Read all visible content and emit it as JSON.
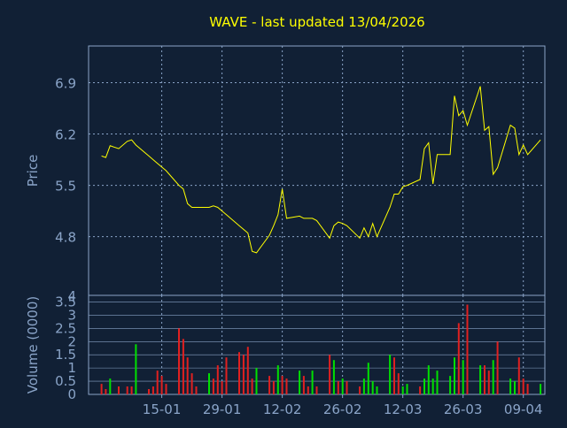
{
  "title": "WAVE - last updated 13/04/2026",
  "colors": {
    "background": "#112035",
    "axis": "#8aa4c8",
    "grid": "#8aa4c8",
    "label": "#8aa4c8",
    "title": "#ffff00",
    "price_line": "#ffff00",
    "volume_up": "#00e000",
    "volume_down": "#e02020"
  },
  "chart_data": [
    {
      "type": "line",
      "name": "price",
      "ylabel": "Price",
      "ylim": [
        4,
        7.4
      ],
      "yticks": [
        4.8,
        5.5,
        6.2,
        6.9
      ],
      "ytick_labels": [
        "4.8",
        "5.5",
        "6.2",
        "6.9"
      ],
      "bottom_label": "4",
      "grid": true,
      "x_dates": [
        "2026-01-01",
        "2026-01-02",
        "2026-01-03",
        "2026-01-05",
        "2026-01-07",
        "2026-01-08",
        "2026-01-09",
        "2026-01-12",
        "2026-01-13",
        "2026-01-14",
        "2026-01-15",
        "2026-01-16",
        "2026-01-19",
        "2026-01-20",
        "2026-01-21",
        "2026-01-22",
        "2026-01-23",
        "2026-01-26",
        "2026-01-27",
        "2026-01-28",
        "2026-01-29",
        "2026-01-30",
        "2026-02-02",
        "2026-02-03",
        "2026-02-04",
        "2026-02-05",
        "2026-02-06",
        "2026-02-09",
        "2026-02-10",
        "2026-02-11",
        "2026-02-12",
        "2026-02-13",
        "2026-02-16",
        "2026-02-17",
        "2026-02-18",
        "2026-02-19",
        "2026-02-20",
        "2026-02-23",
        "2026-02-24",
        "2026-02-25",
        "2026-02-26",
        "2026-02-27",
        "2026-03-02",
        "2026-03-03",
        "2026-03-04",
        "2026-03-05",
        "2026-03-06",
        "2026-03-09",
        "2026-03-10",
        "2026-03-11",
        "2026-03-12",
        "2026-03-13",
        "2026-03-16",
        "2026-03-17",
        "2026-03-18",
        "2026-03-19",
        "2026-03-20",
        "2026-03-23",
        "2026-03-24",
        "2026-03-25",
        "2026-03-26",
        "2026-03-27",
        "2026-03-30",
        "2026-03-31",
        "2026-04-01",
        "2026-04-02",
        "2026-04-03",
        "2026-04-06",
        "2026-04-07",
        "2026-04-08",
        "2026-04-09",
        "2026-04-10",
        "2026-04-13"
      ],
      "values": [
        5.9,
        5.88,
        6.04,
        6.0,
        6.1,
        6.12,
        6.05,
        5.9,
        5.85,
        5.8,
        5.75,
        5.7,
        5.5,
        5.45,
        5.25,
        5.2,
        5.2,
        5.2,
        5.22,
        5.2,
        5.15,
        5.1,
        4.95,
        4.9,
        4.85,
        4.6,
        4.58,
        4.82,
        4.95,
        5.1,
        5.45,
        5.05,
        5.08,
        5.05,
        5.05,
        5.05,
        5.02,
        4.78,
        4.95,
        5.0,
        4.98,
        4.95,
        4.78,
        4.92,
        4.8,
        4.98,
        4.8,
        5.2,
        5.38,
        5.38,
        5.48,
        5.5,
        5.58,
        6.0,
        6.08,
        5.52,
        5.92,
        5.92,
        6.72,
        6.45,
        6.52,
        6.32,
        6.85,
        6.25,
        6.3,
        5.65,
        5.74,
        6.32,
        6.28,
        5.92,
        6.05,
        5.92,
        6.12
      ],
      "xtick_labels": [
        "15-01",
        "29-01",
        "12-02",
        "26-02",
        "12-03",
        "26-03",
        "09-04"
      ],
      "xtick_dates": [
        "2026-01-15",
        "2026-01-29",
        "2026-02-12",
        "2026-02-26",
        "2026-03-12",
        "2026-03-26",
        "2026-04-09"
      ]
    },
    {
      "type": "bar",
      "name": "volume",
      "ylabel": "Volume (0000)",
      "ylim": [
        0,
        3.75
      ],
      "yticks": [
        0,
        0.5,
        1,
        1.5,
        2,
        2.5,
        3,
        3.5
      ],
      "ytick_labels": [
        "0",
        "0.5",
        "1",
        "1.5",
        "2",
        "2.5",
        "3",
        "3.5"
      ],
      "grid": true,
      "x_dates": [
        "2026-01-01",
        "2026-01-02",
        "2026-01-03",
        "2026-01-05",
        "2026-01-07",
        "2026-01-08",
        "2026-01-09",
        "2026-01-12",
        "2026-01-13",
        "2026-01-14",
        "2026-01-15",
        "2026-01-16",
        "2026-01-19",
        "2026-01-20",
        "2026-01-21",
        "2026-01-22",
        "2026-01-23",
        "2026-01-26",
        "2026-01-27",
        "2026-01-28",
        "2026-01-29",
        "2026-01-30",
        "2026-02-02",
        "2026-02-03",
        "2026-02-04",
        "2026-02-05",
        "2026-02-06",
        "2026-02-09",
        "2026-02-10",
        "2026-02-11",
        "2026-02-12",
        "2026-02-13",
        "2026-02-16",
        "2026-02-17",
        "2026-02-18",
        "2026-02-19",
        "2026-02-20",
        "2026-02-23",
        "2026-02-24",
        "2026-02-25",
        "2026-02-26",
        "2026-02-27",
        "2026-03-02",
        "2026-03-03",
        "2026-03-04",
        "2026-03-05",
        "2026-03-06",
        "2026-03-09",
        "2026-03-10",
        "2026-03-11",
        "2026-03-12",
        "2026-03-13",
        "2026-03-16",
        "2026-03-17",
        "2026-03-18",
        "2026-03-19",
        "2026-03-20",
        "2026-03-23",
        "2026-03-24",
        "2026-03-25",
        "2026-03-26",
        "2026-03-27",
        "2026-03-30",
        "2026-03-31",
        "2026-04-01",
        "2026-04-02",
        "2026-04-03",
        "2026-04-06",
        "2026-04-07",
        "2026-04-08",
        "2026-04-09",
        "2026-04-10",
        "2026-04-13"
      ],
      "values": [
        0.4,
        0.2,
        0.6,
        0.3,
        0.3,
        0.3,
        1.9,
        0.2,
        0.3,
        0.9,
        0.7,
        0.4,
        2.5,
        2.1,
        1.4,
        0.8,
        0.3,
        0.8,
        0.6,
        1.1,
        0.5,
        1.4,
        1.6,
        1.5,
        1.8,
        0.6,
        1.0,
        0.7,
        0.5,
        1.1,
        0.7,
        0.6,
        0.9,
        0.7,
        0.3,
        0.9,
        0.3,
        1.5,
        1.3,
        0.5,
        0.6,
        0.5,
        0.3,
        0.6,
        1.2,
        0.5,
        0.3,
        1.5,
        1.4,
        0.8,
        0.3,
        0.4,
        0.3,
        0.6,
        1.1,
        0.6,
        0.9,
        0.7,
        1.4,
        2.7,
        1.3,
        3.4,
        1.1,
        1.1,
        0.9,
        1.3,
        2.0,
        0.6,
        0.5,
        1.4,
        0.6,
        0.4,
        0.4
      ],
      "up": [
        false,
        false,
        true,
        false,
        false,
        false,
        true,
        false,
        false,
        false,
        false,
        false,
        false,
        false,
        false,
        false,
        false,
        true,
        false,
        false,
        false,
        false,
        false,
        false,
        false,
        false,
        true,
        false,
        false,
        true,
        false,
        false,
        true,
        false,
        false,
        true,
        false,
        false,
        true,
        false,
        true,
        false,
        false,
        true,
        true,
        true,
        true,
        true,
        false,
        false,
        true,
        true,
        false,
        true,
        true,
        true,
        true,
        true,
        true,
        false,
        true,
        false,
        true,
        false,
        false,
        true,
        false,
        true,
        true,
        false,
        false,
        false,
        true
      ],
      "xtick_labels": [
        "15-01",
        "29-01",
        "12-02",
        "26-02",
        "12-03",
        "26-03",
        "09-04"
      ],
      "xtick_dates": [
        "2026-01-15",
        "2026-01-29",
        "2026-02-12",
        "2026-02-26",
        "2026-03-12",
        "2026-03-26",
        "2026-04-09"
      ]
    }
  ]
}
